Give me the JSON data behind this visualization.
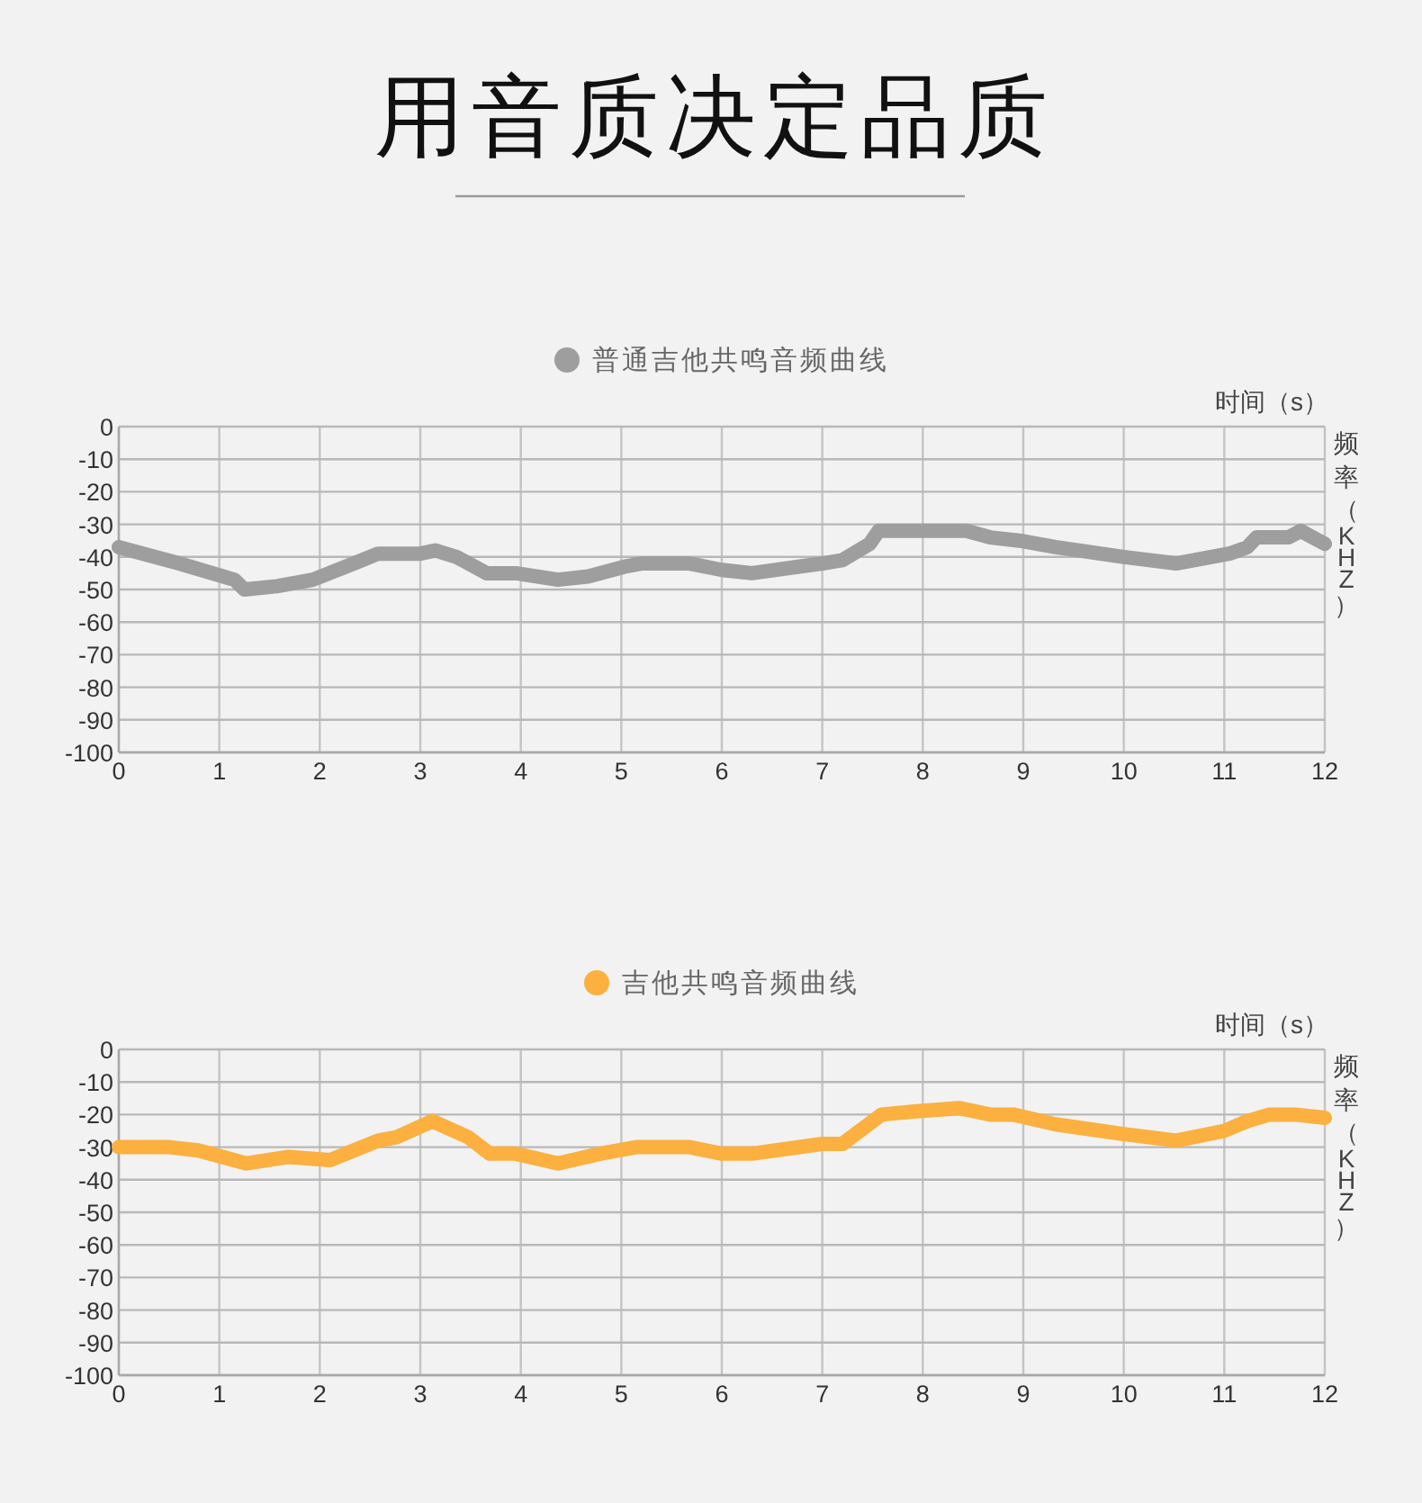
{
  "chart_data": [
    {
      "type": "line",
      "title": "用音质决定品质",
      "xlabel": "时间（s）",
      "ylabel": "频率（KHZ）",
      "legend": "top",
      "grid": true,
      "xlim": [
        0,
        12
      ],
      "ylim": [
        -100,
        0
      ],
      "xticks": [
        0,
        1,
        2,
        3,
        4,
        5,
        6,
        7,
        8,
        9,
        10,
        11,
        12
      ],
      "yticks": [
        0,
        -10,
        -20,
        -30,
        -40,
        -50,
        -60,
        -70,
        -80,
        -90,
        -100
      ],
      "series": [
        {
          "name": "普通吉他共鸣音频曲线",
          "color": "#9e9e9e",
          "x": [
            0,
            0.6,
            1.15,
            1.25,
            1.57,
            1.93,
            2.34,
            2.58,
            3.0,
            3.15,
            3.36,
            3.66,
            3.95,
            4.37,
            4.67,
            5.03,
            5.2,
            5.68,
            6.0,
            6.3,
            7.0,
            7.2,
            7.47,
            7.56,
            8.43,
            8.67,
            8.96,
            9.32,
            10.0,
            10.52,
            11.05,
            11.23,
            11.32,
            11.64,
            11.76,
            12
          ],
          "values": [
            -37,
            -42,
            -47,
            -50,
            -49,
            -47,
            -42,
            -39,
            -39,
            -38,
            -40,
            -45,
            -45,
            -47,
            -46,
            -43,
            -42,
            -42,
            -44,
            -45,
            -42,
            -41,
            -36,
            -32,
            -32,
            -34,
            -35,
            -37,
            -40,
            -42,
            -39,
            -37,
            -34,
            -34,
            -32,
            -36
          ]
        }
      ]
    },
    {
      "type": "line",
      "xlabel": "时间（s）",
      "ylabel": "频率（KHZ）",
      "legend": "top",
      "grid": true,
      "xlim": [
        0,
        12
      ],
      "ylim": [
        -100,
        0
      ],
      "xticks": [
        0,
        1,
        2,
        3,
        4,
        5,
        6,
        7,
        8,
        9,
        10,
        11,
        12
      ],
      "yticks": [
        0,
        -10,
        -20,
        -30,
        -40,
        -50,
        -60,
        -70,
        -80,
        -90,
        -100
      ],
      "series": [
        {
          "name": "吉他共鸣音频曲线",
          "color": "#fbb040",
          "x": [
            0,
            0.5,
            0.79,
            1.27,
            1.69,
            2.1,
            2.34,
            2.58,
            2.76,
            3.12,
            3.48,
            3.69,
            3.95,
            4.37,
            4.79,
            5.15,
            5.68,
            6.0,
            6.3,
            7.0,
            7.2,
            7.59,
            7.94,
            8.36,
            8.67,
            8.9,
            9.32,
            10.0,
            10.52,
            11.0,
            11.23,
            11.45,
            11.7,
            12
          ],
          "values": [
            -30,
            -30,
            -31,
            -35,
            -33,
            -34,
            -31,
            -28,
            -27,
            -22,
            -27,
            -32,
            -32,
            -35,
            -32,
            -30,
            -30,
            -32,
            -32,
            -29,
            -29,
            -20,
            -19,
            -18,
            -20,
            -20,
            -23,
            -26,
            -28,
            -25,
            -22,
            -20,
            -20,
            -21
          ]
        }
      ]
    }
  ]
}
